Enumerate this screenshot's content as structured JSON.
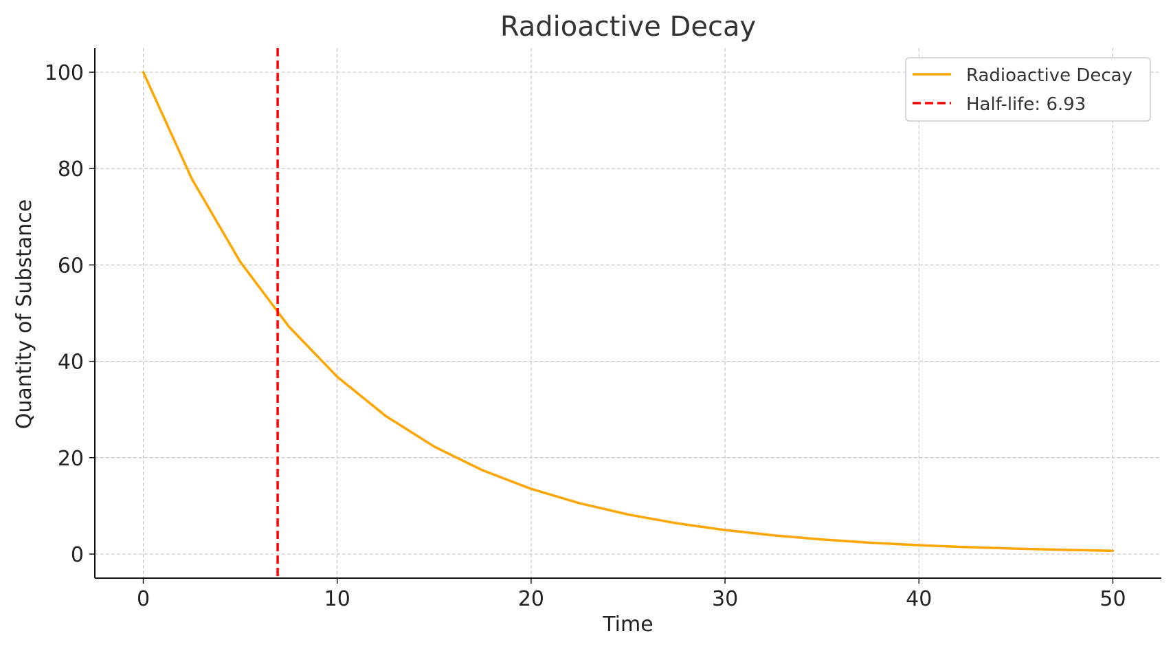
{
  "chart_data": {
    "type": "line",
    "title": "Radioactive Decay",
    "xlabel": "Time",
    "ylabel": "Quantity of Substance",
    "xlim": [
      -2.5,
      52.5
    ],
    "ylim": [
      -5,
      105
    ],
    "xticks": [
      0,
      10,
      20,
      30,
      40,
      50
    ],
    "yticks": [
      0,
      20,
      40,
      60,
      80,
      100
    ],
    "grid": true,
    "legend_placement": "top-right",
    "series": [
      {
        "name": "Radioactive Decay",
        "color": "#FFA500",
        "style": "solid",
        "x": [
          0,
          2.5,
          5,
          7.5,
          10,
          12.5,
          15,
          17.5,
          20,
          22.5,
          25,
          27.5,
          30,
          32.5,
          35,
          37.5,
          40,
          42.5,
          45,
          47.5,
          50
        ],
        "y": [
          100,
          77.88,
          60.65,
          47.24,
          36.79,
          28.65,
          22.31,
          17.38,
          13.53,
          10.54,
          8.21,
          6.39,
          4.98,
          3.88,
          3.02,
          2.35,
          1.83,
          1.43,
          1.11,
          0.87,
          0.67
        ]
      },
      {
        "name": "Half-life: 6.93",
        "color": "#FF0000",
        "style": "dashed",
        "vertical_line_x": 6.93
      }
    ]
  }
}
